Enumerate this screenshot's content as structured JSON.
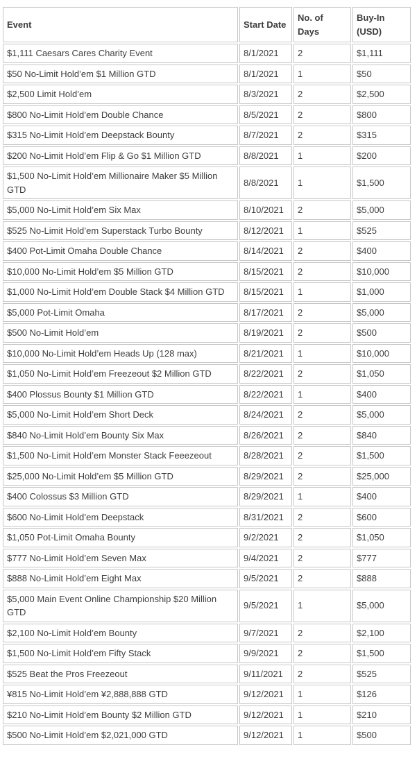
{
  "colors": {
    "text": "#3d3d3d",
    "border": "#c6c6c6",
    "background": "#ffffff"
  },
  "table": {
    "columns": [
      {
        "key": "event",
        "label": "Event"
      },
      {
        "key": "start_date",
        "label": "Start Date"
      },
      {
        "key": "days",
        "label": "No. of Days"
      },
      {
        "key": "buy_in",
        "label": "Buy-In (USD)"
      }
    ],
    "rows": [
      [
        "$1,111 Caesars Cares Charity Event",
        "8/1/2021",
        "2",
        "$1,111"
      ],
      [
        "$50 No-Limit Hold’em $1 Million GTD",
        "8/1/2021",
        "1",
        "$50"
      ],
      [
        "$2,500 Limit Hold’em",
        "8/3/2021",
        "2",
        "$2,500"
      ],
      [
        "$800 No-Limit Hold’em Double Chance",
        "8/5/2021",
        "2",
        "$800"
      ],
      [
        "$315 No-Limit Hold’em Deepstack Bounty",
        "8/7/2021",
        "2",
        "$315"
      ],
      [
        "$200 No-Limit Hold’em Flip & Go $1 Million GTD",
        "8/8/2021",
        "1",
        "$200"
      ],
      [
        "$1,500 No-Limit Hold’em Millionaire Maker $5 Million GTD",
        "8/8/2021",
        "1",
        "$1,500"
      ],
      [
        "$5,000 No-Limit Hold’em Six Max",
        "8/10/2021",
        "2",
        "$5,000"
      ],
      [
        "$525 No-Limit Hold’em Superstack Turbo Bounty",
        "8/12/2021",
        "1",
        "$525"
      ],
      [
        "$400 Pot-Limit Omaha Double Chance",
        "8/14/2021",
        "2",
        "$400"
      ],
      [
        "$10,000 No-Limit Hold’em $5 Million GTD",
        "8/15/2021",
        "2",
        "$10,000"
      ],
      [
        "$1,000 No-Limit Hold’em Double Stack $4 Million GTD",
        "8/15/2021",
        "1",
        "$1,000"
      ],
      [
        "$5,000 Pot-Limit Omaha",
        "8/17/2021",
        "2",
        "$5,000"
      ],
      [
        "$500 No-Limit Hold’em",
        "8/19/2021",
        "2",
        "$500"
      ],
      [
        "$10,000 No-Limit Hold’em Heads Up (128 max)",
        "8/21/2021",
        "1",
        "$10,000"
      ],
      [
        "$1,050 No-Limit Hold’em Freezeout $2 Million GTD",
        "8/22/2021",
        "2",
        "$1,050"
      ],
      [
        "$400 Plossus Bounty $1 Million GTD",
        "8/22/2021",
        "1",
        "$400"
      ],
      [
        "$5,000 No-Limit Hold’em Short Deck",
        "8/24/2021",
        "2",
        "$5,000"
      ],
      [
        "$840 No-Limit Hold’em Bounty Six Max",
        "8/26/2021",
        "2",
        "$840"
      ],
      [
        "$1,500 No-Limit Hold’em Monster Stack Feeezeout",
        "8/28/2021",
        "2",
        "$1,500"
      ],
      [
        "$25,000 No-Limit Hold’em $5 Million GTD",
        "8/29/2021",
        "2",
        "$25,000"
      ],
      [
        "$400 Colossus $3 Million GTD",
        "8/29/2021",
        "1",
        "$400"
      ],
      [
        "$600 No-Limit Hold’em Deepstack",
        "8/31/2021",
        "2",
        "$600"
      ],
      [
        "$1,050 Pot-Limit Omaha Bounty",
        "9/2/2021",
        "2",
        "$1,050"
      ],
      [
        "$777 No-Limit Hold’em Seven Max",
        "9/4/2021",
        "2",
        "$777"
      ],
      [
        "$888 No-Limit Hold’em Eight Max",
        "9/5/2021",
        "2",
        "$888"
      ],
      [
        "$5,000 Main Event Online Championship $20 Million GTD",
        "9/5/2021",
        "1",
        "$5,000"
      ],
      [
        "$2,100 No-Limit Hold’em Bounty",
        "9/7/2021",
        "2",
        "$2,100"
      ],
      [
        "$1,500 No-Limit Hold’em Fifty Stack",
        "9/9/2021",
        "2",
        "$1,500"
      ],
      [
        "$525 Beat the Pros Freezeout",
        "9/11/2021",
        "2",
        "$525"
      ],
      [
        "¥815 No-Limit Hold’em ¥2,888,888 GTD",
        "9/12/2021",
        "1",
        "$126"
      ],
      [
        "$210 No-Limit Hold’em Bounty $2 Million GTD",
        "9/12/2021",
        "1",
        "$210"
      ],
      [
        "$500 No-Limit Hold’em $2,021,000 GTD",
        "9/12/2021",
        "1",
        "$500"
      ]
    ]
  }
}
